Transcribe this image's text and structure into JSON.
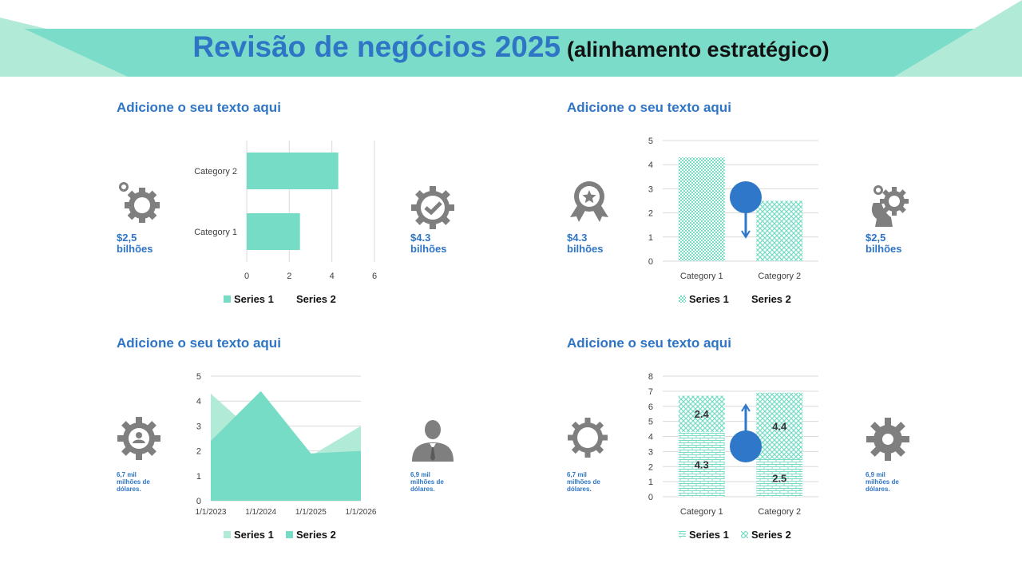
{
  "header": {
    "title": "Revisão de negócios 2025",
    "subtitle": "(alinhamento estratégico)"
  },
  "colors": {
    "accent": "#76dcc6",
    "accent_light": "#b2ead8",
    "banner": "#7bdcc9",
    "text_blue": "#2e75c6",
    "icon_gray": "#7f7f7f",
    "marker_blue": "#2f77c8"
  },
  "quadrants": [
    {
      "heading": "Adicione o seu texto aqui",
      "left_icon": "gear-with-small-gear-icon",
      "left_stat": [
        "$2,5",
        "bilhões"
      ],
      "right_icon": "gear-checkmark-icon",
      "right_stat": [
        "$4.3",
        "bilhões"
      ]
    },
    {
      "heading": "Adicione o seu texto aqui",
      "left_icon": "award-ribbon-icon",
      "left_stat": [
        "$4.3",
        "bilhões"
      ],
      "right_icon": "head-gears-icon",
      "right_stat": [
        "$2,5",
        "bilhões"
      ]
    },
    {
      "heading": "Adicione o seu texto aqui",
      "left_icon": "gear-user-icon",
      "left_stat": [
        "6,7 mil",
        "milhões de",
        "dólares."
      ],
      "right_icon": "businessman-icon",
      "right_stat": [
        "6,9 mil",
        "milhões de",
        "dólares."
      ]
    },
    {
      "heading": "Adicione o seu texto aqui",
      "left_icon": "ring-gear-icon",
      "left_stat": [
        "6,7 mil",
        "milhões de",
        "dólares."
      ],
      "right_icon": "cog-icon",
      "right_stat": [
        "6,9 mil",
        "milhões de",
        "dólares."
      ]
    }
  ],
  "chart_data": [
    {
      "type": "bar",
      "orientation": "horizontal",
      "categories": [
        "Category 1",
        "Category 2"
      ],
      "series": [
        {
          "name": "Series 1",
          "values": [
            2.5,
            4.3
          ]
        },
        {
          "name": "Series 2",
          "values": [
            null,
            null
          ]
        }
      ],
      "xlim": [
        0,
        6
      ],
      "ticks": [
        "0",
        "2",
        "4",
        "6"
      ],
      "grid": true,
      "legend": "bottom"
    },
    {
      "type": "bar",
      "categories": [
        "Category 1",
        "Category 2"
      ],
      "series": [
        {
          "name": "Series 1",
          "values": [
            4.3,
            2.5
          ]
        },
        {
          "name": "Series 2",
          "values": [
            null,
            null
          ]
        }
      ],
      "ylim": [
        0,
        5
      ],
      "ticks": [
        "0",
        "1",
        "2",
        "3",
        "4",
        "5"
      ],
      "grid": true,
      "legend": "bottom",
      "annotation": "pin-marker-icon"
    },
    {
      "type": "area",
      "x": [
        "1/1/2023",
        "1/1/2024",
        "1/1/2025",
        "1/1/2026"
      ],
      "series": [
        {
          "name": "Series 1",
          "values": [
            4.3,
            2.5,
            1.8,
            3.0
          ]
        },
        {
          "name": "Series 2",
          "values": [
            2.4,
            4.4,
            1.9,
            2.0
          ]
        }
      ],
      "ylim": [
        0,
        5
      ],
      "ticks": [
        "0",
        "1",
        "2",
        "3",
        "4",
        "5"
      ],
      "grid": true,
      "legend": "bottom"
    },
    {
      "type": "bar",
      "stacked": true,
      "categories": [
        "Category 1",
        "Category 2"
      ],
      "series": [
        {
          "name": "Series 1",
          "values": [
            4.3,
            2.5
          ]
        },
        {
          "name": "Series 2",
          "values": [
            2.4,
            4.4
          ]
        }
      ],
      "data_labels": [
        [
          "4.3",
          "2.5"
        ],
        [
          "2.4",
          "4.4"
        ]
      ],
      "ylim": [
        0,
        8
      ],
      "ticks": [
        "0",
        "1",
        "2",
        "3",
        "4",
        "5",
        "6",
        "7",
        "8"
      ],
      "grid": true,
      "legend": "bottom",
      "annotation": "pin-marker-icon"
    }
  ]
}
